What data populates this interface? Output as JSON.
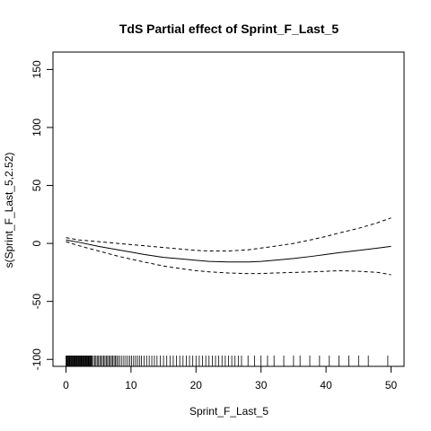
{
  "chart_data": {
    "type": "line",
    "title": "TdS Partial effect of Sprint_F_Last_5",
    "xlabel": "Sprint_F_Last_5",
    "ylabel": "s(Sprint_F_Last_5,2.52)",
    "xlim": [
      -2,
      52
    ],
    "ylim": [
      -106,
      165
    ],
    "xticks": [
      0,
      10,
      20,
      30,
      40,
      50
    ],
    "yticks": [
      -100,
      -50,
      0,
      50,
      100,
      150
    ],
    "grid": false,
    "series": [
      {
        "role": "estimate",
        "style": "solid",
        "x": [
          0,
          2,
          5,
          8,
          10,
          12,
          15,
          18,
          20,
          22,
          25,
          28,
          30,
          32,
          35,
          38,
          40,
          42,
          45,
          48,
          50
        ],
        "y": [
          3,
          1,
          -2.5,
          -5.5,
          -7.5,
          -9.5,
          -12,
          -13.5,
          -14.5,
          -15.5,
          -16,
          -16,
          -15.5,
          -14.5,
          -13,
          -11,
          -9.5,
          -8,
          -6,
          -4,
          -2.5
        ]
      },
      {
        "role": "upper-bound",
        "style": "dashed",
        "x": [
          0,
          2,
          5,
          8,
          10,
          12,
          15,
          18,
          20,
          22,
          25,
          28,
          30,
          32,
          35,
          38,
          40,
          42,
          45,
          48,
          50
        ],
        "y": [
          5,
          3,
          1.5,
          0,
          -1,
          -2,
          -3.5,
          -5,
          -6,
          -6.5,
          -6.5,
          -5.5,
          -4,
          -2.5,
          0,
          3.5,
          6,
          9,
          13,
          18,
          22
        ]
      },
      {
        "role": "lower-bound",
        "style": "dashed",
        "x": [
          0,
          2,
          5,
          8,
          10,
          12,
          15,
          18,
          20,
          22,
          25,
          28,
          30,
          32,
          35,
          38,
          40,
          42,
          45,
          48,
          50
        ],
        "y": [
          1.5,
          -2,
          -6.5,
          -11,
          -13.5,
          -16,
          -19.5,
          -22,
          -23.5,
          -24.5,
          -25.5,
          -26,
          -26,
          -25.5,
          -25,
          -24.5,
          -24,
          -23.5,
          -24,
          -25,
          -27
        ]
      }
    ],
    "rug": [
      0,
      0.1,
      0.2,
      0.3,
      0.4,
      0.5,
      0.6,
      0.7,
      0.8,
      0.9,
      1,
      1.1,
      1.2,
      1.3,
      1.4,
      1.5,
      1.6,
      1.7,
      1.8,
      1.9,
      2,
      2.1,
      2.2,
      2.3,
      2.4,
      2.5,
      2.6,
      2.7,
      2.8,
      2.9,
      3,
      3.1,
      3.2,
      3.3,
      3.4,
      3.5,
      3.6,
      3.7,
      3.8,
      3.9,
      4,
      4.2,
      4.4,
      4.6,
      4.8,
      5,
      5.2,
      5.4,
      5.6,
      5.8,
      6,
      6.2,
      6.4,
      6.6,
      6.8,
      7,
      7.2,
      7.4,
      7.6,
      7.8,
      8,
      8.3,
      8.6,
      8.9,
      9.2,
      9.5,
      9.8,
      10.1,
      10.4,
      10.7,
      11,
      11.3,
      11.6,
      12,
      12.4,
      12.8,
      13.2,
      13.6,
      14,
      14.5,
      15,
      15.5,
      16,
      16.5,
      17,
      17.5,
      18,
      18.5,
      19,
      19.5,
      20,
      20.5,
      21,
      21.5,
      22,
      22.5,
      23,
      23.5,
      24,
      24.5,
      25,
      25.5,
      26,
      26.5,
      27,
      28,
      29,
      30,
      31,
      32,
      33.5,
      35,
      36,
      37.5,
      39,
      40.5,
      42,
      43.5,
      45,
      46.5,
      49.5
    ]
  }
}
